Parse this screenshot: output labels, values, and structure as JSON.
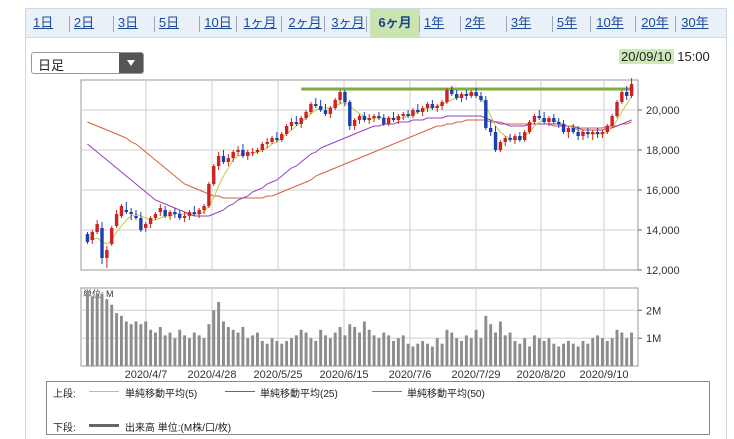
{
  "range_tabs": [
    {
      "label": "1日"
    },
    {
      "label": "2日"
    },
    {
      "label": "3日"
    },
    {
      "label": "5日"
    },
    {
      "label": "10日"
    },
    {
      "label": "1ヶ月"
    },
    {
      "label": "2ヶ月"
    },
    {
      "label": "3ヶ月"
    },
    {
      "label": "6ヶ月",
      "active": true
    },
    {
      "label": "1年"
    },
    {
      "label": "2年"
    },
    {
      "label": "3年"
    },
    {
      "label": "5年"
    },
    {
      "label": "10年"
    },
    {
      "label": "20年"
    },
    {
      "label": "30年"
    }
  ],
  "period_select": {
    "value": "日足"
  },
  "datetime": {
    "date": "20/09/10",
    "time": "15:00"
  },
  "colors": {
    "ma5": "#c8c83c",
    "ma25": "#9a3cc8",
    "ma50": "#d2643c",
    "up": "#2a7a2a",
    "down": "#1a3fb0",
    "volume": "#8c8c8c",
    "resistance": "#7fae3c",
    "grid": "#cfcfcf"
  },
  "chart_data": [
    {
      "type": "candlestick",
      "y_ticks": [
        "20,000",
        "18,000",
        "16,000",
        "14,000",
        "12,000"
      ],
      "x_ticks": [
        "2020/4/7",
        "2020/4/28",
        "2020/5/25",
        "2020/6/15",
        "2020/7/6",
        "2020/7/29",
        "2020/8/20",
        "2020/9/10"
      ],
      "ylim": [
        12000,
        21500
      ],
      "ohlc": [
        [
          13800,
          13900,
          13300,
          13400
        ],
        [
          13500,
          14000,
          13300,
          13900
        ],
        [
          13900,
          14500,
          13800,
          14300
        ],
        [
          14100,
          14400,
          12300,
          12600
        ],
        [
          12600,
          13200,
          12100,
          13000
        ],
        [
          13300,
          14200,
          13200,
          14100
        ],
        [
          14200,
          15000,
          14100,
          14800
        ],
        [
          14700,
          15300,
          14600,
          15200
        ],
        [
          15000,
          15400,
          14800,
          14900
        ],
        [
          14900,
          15100,
          14500,
          14800
        ],
        [
          14700,
          15000,
          14500,
          14600
        ],
        [
          14600,
          14900,
          13900,
          14000
        ],
        [
          14100,
          14400,
          13900,
          14300
        ],
        [
          14300,
          14700,
          14100,
          14600
        ],
        [
          14600,
          14900,
          14500,
          14800
        ],
        [
          14900,
          15300,
          14700,
          15100
        ],
        [
          15000,
          15200,
          14600,
          14700
        ],
        [
          14700,
          15000,
          14500,
          14900
        ],
        [
          14900,
          15100,
          14600,
          14800
        ],
        [
          14800,
          15000,
          14500,
          14600
        ],
        [
          14600,
          14900,
          14400,
          14700
        ],
        [
          14700,
          15000,
          14500,
          14900
        ],
        [
          14900,
          15200,
          14700,
          14800
        ],
        [
          14800,
          15100,
          14600,
          15000
        ],
        [
          15000,
          15300,
          14800,
          15200
        ],
        [
          15200,
          16400,
          15100,
          16300
        ],
        [
          16300,
          17300,
          16200,
          17200
        ],
        [
          17200,
          17900,
          17000,
          17700
        ],
        [
          17700,
          18000,
          17300,
          17400
        ],
        [
          17400,
          17800,
          17200,
          17600
        ],
        [
          17600,
          18000,
          17400,
          17900
        ],
        [
          17900,
          18200,
          17700,
          18000
        ],
        [
          18000,
          18300,
          17600,
          17700
        ],
        [
          17700,
          18000,
          17500,
          17900
        ],
        [
          17900,
          18100,
          17700,
          17900
        ],
        [
          17900,
          18100,
          17800,
          18000
        ],
        [
          18000,
          18400,
          17900,
          18300
        ],
        [
          18300,
          18600,
          18100,
          18400
        ],
        [
          18400,
          18700,
          18300,
          18600
        ],
        [
          18600,
          18900,
          18400,
          18500
        ],
        [
          18500,
          18900,
          18400,
          18800
        ],
        [
          18800,
          19300,
          18700,
          19200
        ],
        [
          19200,
          19600,
          19000,
          19400
        ],
        [
          19400,
          19700,
          19200,
          19300
        ],
        [
          19300,
          19700,
          19100,
          19600
        ],
        [
          19600,
          20000,
          19500,
          19900
        ],
        [
          19900,
          20400,
          19800,
          20300
        ],
        [
          20300,
          20600,
          20100,
          20200
        ],
        [
          20200,
          20500,
          19900,
          20000
        ],
        [
          20000,
          20300,
          19700,
          19800
        ],
        [
          19800,
          20200,
          19600,
          20100
        ],
        [
          20100,
          20600,
          20000,
          20500
        ],
        [
          20500,
          21000,
          20300,
          20900
        ],
        [
          20900,
          21000,
          20200,
          20400
        ],
        [
          20400,
          20500,
          19000,
          19200
        ],
        [
          19200,
          19600,
          19000,
          19500
        ],
        [
          19500,
          19800,
          19300,
          19700
        ],
        [
          19700,
          19900,
          19400,
          19500
        ],
        [
          19500,
          19800,
          19300,
          19600
        ],
        [
          19600,
          19800,
          19400,
          19700
        ],
        [
          19700,
          19900,
          19500,
          19600
        ],
        [
          19600,
          19800,
          19200,
          19300
        ],
        [
          19300,
          19700,
          19200,
          19600
        ],
        [
          19600,
          19900,
          19400,
          19500
        ],
        [
          19500,
          19800,
          19300,
          19700
        ],
        [
          19700,
          19900,
          19500,
          19800
        ],
        [
          19800,
          20000,
          19600,
          19700
        ],
        [
          19700,
          20100,
          19600,
          20000
        ],
        [
          20000,
          20300,
          19800,
          19900
        ],
        [
          19900,
          20200,
          19700,
          20100
        ],
        [
          20100,
          20400,
          19900,
          20300
        ],
        [
          20300,
          20500,
          20000,
          20100
        ],
        [
          20100,
          20300,
          19900,
          20200
        ],
        [
          20200,
          20500,
          20000,
          20400
        ],
        [
          20400,
          21100,
          20300,
          21000
        ],
        [
          21000,
          21200,
          20700,
          20800
        ],
        [
          20800,
          21000,
          20500,
          20600
        ],
        [
          20600,
          20900,
          20400,
          20800
        ],
        [
          20800,
          21000,
          20500,
          20700
        ],
        [
          20700,
          21000,
          20600,
          20900
        ],
        [
          20900,
          21100,
          20600,
          20700
        ],
        [
          20700,
          20900,
          20400,
          20500
        ],
        [
          20500,
          20700,
          19000,
          19100
        ],
        [
          19100,
          19500,
          18700,
          18900
        ],
        [
          18900,
          19200,
          17900,
          18000
        ],
        [
          18000,
          18500,
          17900,
          18400
        ],
        [
          18400,
          18700,
          18200,
          18600
        ],
        [
          18600,
          18800,
          18400,
          18500
        ],
        [
          18500,
          18800,
          18300,
          18700
        ],
        [
          18700,
          18900,
          18400,
          18500
        ],
        [
          18500,
          19000,
          18400,
          18900
        ],
        [
          18900,
          19500,
          18800,
          19400
        ],
        [
          19400,
          19800,
          19300,
          19700
        ],
        [
          19700,
          20000,
          19500,
          19600
        ],
        [
          19600,
          19900,
          19300,
          19400
        ],
        [
          19400,
          19700,
          19200,
          19600
        ],
        [
          19600,
          19800,
          19300,
          19400
        ],
        [
          19400,
          19600,
          19100,
          19300
        ],
        [
          19300,
          19500,
          18800,
          18900
        ],
        [
          18900,
          19200,
          18600,
          19100
        ],
        [
          19100,
          19300,
          18800,
          18900
        ],
        [
          18900,
          19200,
          18500,
          18700
        ],
        [
          18700,
          19000,
          18500,
          18900
        ],
        [
          18900,
          19100,
          18600,
          18800
        ],
        [
          18800,
          19000,
          18500,
          18900
        ],
        [
          18900,
          19100,
          18600,
          18800
        ],
        [
          18800,
          19000,
          18600,
          18900
        ],
        [
          18900,
          19300,
          18800,
          19200
        ],
        [
          19200,
          19800,
          19100,
          19700
        ],
        [
          19700,
          20500,
          19600,
          20400
        ],
        [
          20400,
          21000,
          20300,
          20900
        ],
        [
          20900,
          21200,
          20500,
          20700
        ],
        [
          20700,
          21600,
          20600,
          21300
        ]
      ],
      "ma5": [
        13700,
        13500,
        13600,
        13400,
        13300,
        13500,
        13900,
        14200,
        14500,
        14700,
        14800,
        14700,
        14600,
        14500,
        14500,
        14600,
        14700,
        14700,
        14800,
        14800,
        14800,
        14800,
        14800,
        14800,
        14900,
        15200,
        15600,
        16200,
        16700,
        17100,
        17500,
        17700,
        17800,
        17800,
        17800,
        17900,
        18000,
        18100,
        18300,
        18400,
        18600,
        18800,
        19000,
        19200,
        19400,
        19600,
        19800,
        20000,
        20100,
        20100,
        20100,
        20200,
        20300,
        20400,
        20200,
        20000,
        19800,
        19700,
        19500,
        19600,
        19600,
        19600,
        19600,
        19600,
        19600,
        19600,
        19700,
        19800,
        19900,
        20000,
        20100,
        20100,
        20200,
        20300,
        20400,
        20500,
        20600,
        20700,
        20800,
        20800,
        20800,
        20600,
        20200,
        19700,
        19200,
        18900,
        18700,
        18600,
        18500,
        18600,
        18700,
        18900,
        19200,
        19400,
        19500,
        19500,
        19500,
        19400,
        19300,
        19200,
        19100,
        19000,
        18900,
        18800,
        18800,
        18800,
        18800,
        18900,
        19100,
        19500,
        19900,
        20300,
        20700
      ],
      "ma25": [
        18300,
        18100,
        17900,
        17700,
        17500,
        17300,
        17100,
        16900,
        16700,
        16500,
        16300,
        16100,
        15900,
        15700,
        15500,
        15400,
        15300,
        15200,
        15100,
        15000,
        14900,
        14800,
        14700,
        14700,
        14700,
        14700,
        14800,
        14900,
        15000,
        15200,
        15300,
        15500,
        15600,
        15700,
        15900,
        16000,
        16100,
        16300,
        16400,
        16500,
        16700,
        16900,
        17100,
        17200,
        17400,
        17600,
        17800,
        17900,
        18100,
        18200,
        18300,
        18400,
        18500,
        18600,
        18700,
        18800,
        18900,
        19000,
        19100,
        19200,
        19200,
        19300,
        19300,
        19300,
        19400,
        19400,
        19400,
        19500,
        19500,
        19500,
        19600,
        19600,
        19600,
        19600,
        19700,
        19700,
        19700,
        19700,
        19700,
        19700,
        19700,
        19700,
        19600,
        19500,
        19400,
        19300,
        19300,
        19200,
        19200,
        19200,
        19200,
        19300,
        19300,
        19300,
        19300,
        19300,
        19300,
        19300,
        19200,
        19200,
        19100,
        19100,
        19000,
        19000,
        19000,
        19000,
        19000,
        19100,
        19100,
        19200,
        19300,
        19400,
        19500
      ],
      "ma50": [
        19400,
        19300,
        19200,
        19100,
        19000,
        18900,
        18800,
        18700,
        18600,
        18400,
        18300,
        18100,
        17900,
        17700,
        17500,
        17300,
        17100,
        16900,
        16700,
        16500,
        16300,
        16200,
        16100,
        16000,
        15900,
        15800,
        15700,
        15700,
        15600,
        15600,
        15600,
        15600,
        15600,
        15600,
        15600,
        15600,
        15600,
        15700,
        15700,
        15800,
        15900,
        16000,
        16100,
        16200,
        16300,
        16400,
        16500,
        16700,
        16800,
        16900,
        17000,
        17100,
        17200,
        17300,
        17400,
        17500,
        17600,
        17700,
        17800,
        17900,
        18000,
        18100,
        18200,
        18300,
        18400,
        18500,
        18600,
        18700,
        18800,
        18900,
        19000,
        19100,
        19200,
        19200,
        19300,
        19300,
        19400,
        19400,
        19500,
        19500,
        19500,
        19500,
        19500,
        19400,
        19400,
        19400,
        19300,
        19300,
        19300,
        19300,
        19300,
        19300,
        19300,
        19300,
        19300,
        19300,
        19200,
        19200,
        19200,
        19200,
        19200,
        19100,
        19100,
        19100,
        19100,
        19100,
        19100,
        19200,
        19200,
        19200,
        19300,
        19300,
        19400
      ],
      "resistance_y": 21050
    },
    {
      "type": "bar",
      "unit_label": "単位: M",
      "y_ticks": [
        "2M",
        "1M"
      ],
      "ylim": [
        0,
        2.8
      ],
      "values": [
        2.7,
        2.5,
        2.6,
        2.6,
        2.4,
        2.2,
        1.9,
        1.8,
        1.6,
        1.5,
        1.6,
        1.5,
        1.6,
        1.3,
        1.2,
        1.4,
        1.1,
        1.2,
        1.0,
        1.3,
        1.1,
        1.0,
        1.2,
        1.1,
        1.0,
        1.5,
        2.0,
        2.3,
        1.6,
        1.4,
        1.3,
        1.2,
        1.4,
        1.0,
        1.1,
        1.2,
        0.9,
        0.8,
        1.0,
        0.9,
        0.8,
        0.9,
        1.0,
        1.1,
        1.3,
        1.2,
        1.0,
        0.9,
        1.3,
        1.1,
        1.0,
        1.2,
        1.4,
        1.1,
        1.5,
        1.4,
        1.2,
        1.6,
        1.3,
        1.1,
        1.0,
        1.2,
        1.1,
        0.9,
        1.0,
        1.1,
        0.8,
        0.7,
        0.8,
        0.9,
        0.8,
        0.7,
        1.0,
        0.8,
        1.3,
        1.2,
        1.0,
        0.9,
        1.1,
        1.0,
        1.3,
        1.0,
        1.8,
        1.5,
        1.2,
        1.6,
        1.1,
        1.2,
        0.9,
        0.8,
        1.0,
        0.7,
        1.1,
        1.0,
        0.9,
        1.0,
        0.8,
        0.7,
        0.8,
        0.9,
        0.8,
        0.7,
        0.9,
        0.8,
        1.0,
        1.1,
        1.0,
        0.9,
        1.0,
        1.3,
        1.2,
        1.0,
        1.2
      ]
    }
  ],
  "legend": {
    "top_label": "上段:",
    "ma5": "単純移動平均(5)",
    "ma25": "単純移動平均(25)",
    "ma50": "単純移動平均(50)",
    "bottom_label": "下段:",
    "volume": "出来高 単位:(M株/口/枚)"
  }
}
